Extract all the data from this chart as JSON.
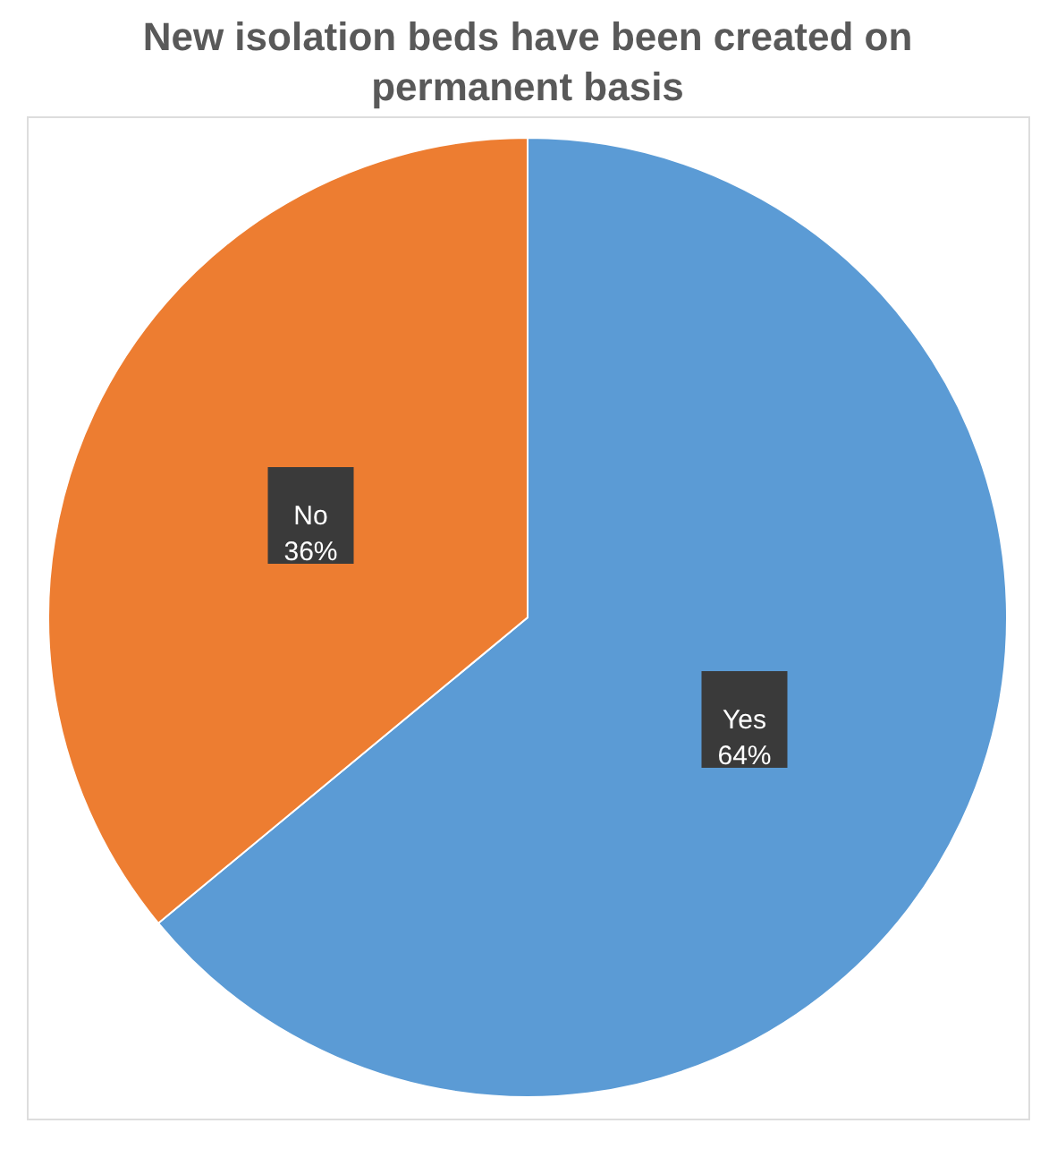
{
  "chart_data": {
    "type": "pie",
    "title": "New isolation beds have been created on permanent basis",
    "categories": [
      "Yes",
      "No"
    ],
    "values": [
      64,
      36
    ],
    "colors": [
      "#5b9bd5",
      "#ed7d31"
    ],
    "value_labels": [
      "64%",
      "36%"
    ],
    "legend": false
  }
}
